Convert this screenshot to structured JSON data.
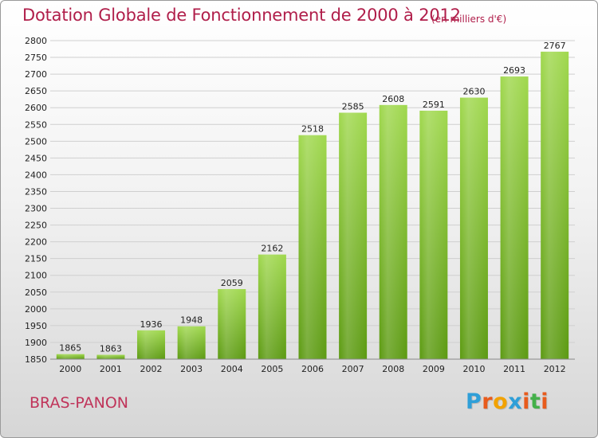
{
  "title": "Dotation Globale de Fonctionnement de 2000 à 2012",
  "unit_note": "(en milliers d'€)",
  "town": "BRAS-PANON",
  "logo": {
    "text": "Proxiti",
    "colors": [
      "#2f9fd8",
      "#e85b1c",
      "#f2a200",
      "#2f9fd8",
      "#e85b1c",
      "#44b04a",
      "#e85b1c"
    ]
  },
  "chart_data": {
    "type": "bar",
    "title": "Dotation Globale de Fonctionnement de 2000 à 2012",
    "xlabel": "",
    "ylabel": "",
    "categories": [
      "2000",
      "2001",
      "2002",
      "2003",
      "2004",
      "2005",
      "2006",
      "2007",
      "2008",
      "2009",
      "2010",
      "2011",
      "2012"
    ],
    "values": [
      1865,
      1863,
      1936,
      1948,
      2059,
      2162,
      2518,
      2585,
      2608,
      2591,
      2630,
      2693,
      2767
    ],
    "ylim": [
      1850,
      2800
    ],
    "ytick_step": 50,
    "grid": true,
    "bar_color_top": "#a0d84e",
    "bar_color_bottom": "#5c9a12"
  }
}
